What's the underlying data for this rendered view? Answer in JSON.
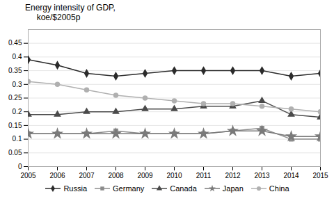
{
  "chart_data": {
    "type": "line",
    "title": "Energy intensity of GDP,",
    "subtitle": "     koe/$2005p",
    "x": [
      2005,
      2006,
      2007,
      2008,
      2009,
      2010,
      2011,
      2012,
      2013,
      2014,
      2015
    ],
    "series": [
      {
        "name": "Russia",
        "color": "#2b2b2b",
        "marker": "diamond",
        "values": [
          0.39,
          0.37,
          0.34,
          0.33,
          0.34,
          0.35,
          0.35,
          0.35,
          0.35,
          0.33,
          0.34
        ]
      },
      {
        "name": "Germany",
        "color": "#8c8c8c",
        "marker": "square",
        "values": [
          0.12,
          0.12,
          0.12,
          0.13,
          0.12,
          0.12,
          0.12,
          0.13,
          0.14,
          0.1,
          0.1
        ]
      },
      {
        "name": "Canada",
        "color": "#4a4a4a",
        "marker": "triangle",
        "values": [
          0.19,
          0.19,
          0.2,
          0.2,
          0.21,
          0.21,
          0.22,
          0.22,
          0.24,
          0.19,
          0.18
        ]
      },
      {
        "name": "Japan",
        "color": "#7a7a7a",
        "marker": "star",
        "values": [
          0.12,
          0.12,
          0.12,
          0.12,
          0.12,
          0.12,
          0.12,
          0.13,
          0.13,
          0.11,
          0.11
        ]
      },
      {
        "name": "China",
        "color": "#b0b0b0",
        "marker": "circle",
        "values": [
          0.31,
          0.3,
          0.28,
          0.26,
          0.25,
          0.24,
          0.23,
          0.23,
          0.22,
          0.21,
          0.2
        ]
      }
    ],
    "xlim": [
      2005,
      2015
    ],
    "xticks": [
      2005,
      2006,
      2007,
      2008,
      2009,
      2010,
      2011,
      2012,
      2013,
      2014,
      2015
    ],
    "ylim": [
      0,
      0.5
    ],
    "yticks": [
      0,
      0.05,
      0.1,
      0.15,
      0.2,
      0.25,
      0.3,
      0.35,
      0.4,
      0.45
    ],
    "grid": true,
    "legend": "bottom"
  }
}
